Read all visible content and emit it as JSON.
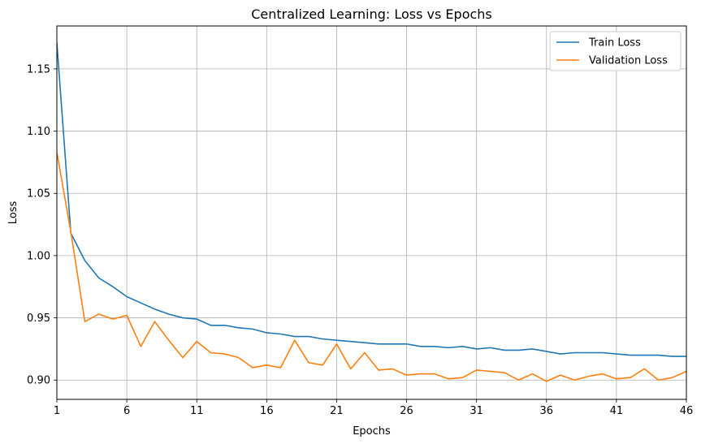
{
  "chart_data": {
    "type": "line",
    "title": "Centralized Learning: Loss vs Epochs",
    "xlabel": "Epochs",
    "ylabel": "Loss",
    "xlim": [
      1,
      46
    ],
    "ylim": [
      0.8845,
      1.1845
    ],
    "xticks": [
      1,
      6,
      11,
      16,
      21,
      26,
      31,
      36,
      41,
      46
    ],
    "yticks": [
      0.9,
      0.95,
      1.0,
      1.05,
      1.1,
      1.15
    ],
    "ytick_labels": [
      "0.90",
      "0.95",
      "1.00",
      "1.05",
      "1.10",
      "1.15"
    ],
    "grid": true,
    "legend_position": "top-right",
    "x": [
      1,
      2,
      3,
      4,
      5,
      6,
      7,
      8,
      9,
      10,
      11,
      12,
      13,
      14,
      15,
      16,
      17,
      18,
      19,
      20,
      21,
      22,
      23,
      24,
      25,
      26,
      27,
      28,
      29,
      30,
      31,
      32,
      33,
      34,
      35,
      36,
      37,
      38,
      39,
      40,
      41,
      42,
      43,
      44,
      45,
      46
    ],
    "series": [
      {
        "name": "Train Loss",
        "color": "#1f77b4",
        "values": [
          1.171,
          1.018,
          0.996,
          0.982,
          0.975,
          0.967,
          0.962,
          0.957,
          0.953,
          0.95,
          0.949,
          0.944,
          0.944,
          0.942,
          0.941,
          0.938,
          0.937,
          0.935,
          0.935,
          0.933,
          0.932,
          0.931,
          0.93,
          0.929,
          0.929,
          0.929,
          0.927,
          0.927,
          0.926,
          0.927,
          0.925,
          0.926,
          0.924,
          0.924,
          0.925,
          0.923,
          0.921,
          0.922,
          0.922,
          0.922,
          0.921,
          0.92,
          0.92,
          0.92,
          0.919,
          0.919
        ]
      },
      {
        "name": "Validation Loss",
        "color": "#ff7f0e",
        "values": [
          1.083,
          1.019,
          0.947,
          0.953,
          0.949,
          0.952,
          0.927,
          0.947,
          0.932,
          0.918,
          0.931,
          0.922,
          0.921,
          0.918,
          0.91,
          0.912,
          0.91,
          0.932,
          0.914,
          0.912,
          0.929,
          0.909,
          0.922,
          0.908,
          0.909,
          0.904,
          0.905,
          0.905,
          0.901,
          0.902,
          0.908,
          0.907,
          0.906,
          0.9,
          0.905,
          0.899,
          0.904,
          0.9,
          0.903,
          0.905,
          0.901,
          0.902,
          0.909,
          0.9,
          0.902,
          0.907
        ]
      }
    ]
  }
}
